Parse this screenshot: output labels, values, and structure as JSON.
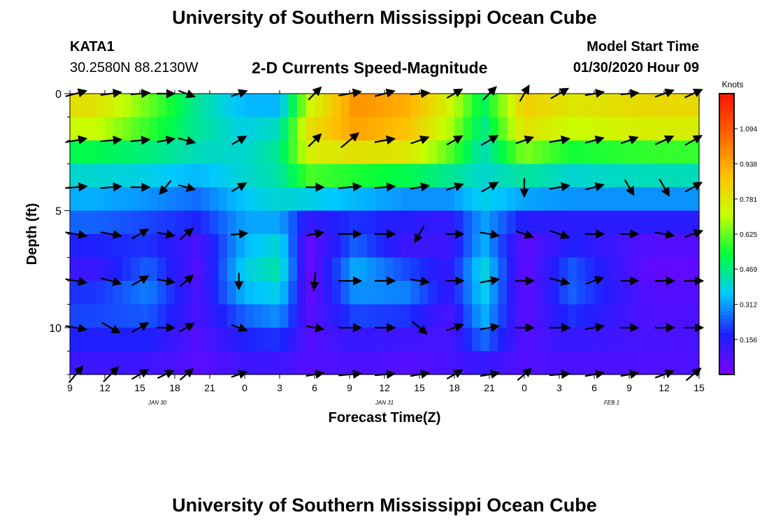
{
  "header": {
    "top_title": "University of Southern Mississippi Ocean Cube",
    "bottom_title": "University of Southern Mississippi Ocean Cube",
    "station_id": "KATA1",
    "station_coords": "30.2580N 88.2130W",
    "model_start_label": "Model Start Time",
    "model_start_value": "01/30/2020 Hour 09"
  },
  "colors": {
    "scale": [
      "#7f00ff",
      "#1f1fff",
      "#00c8ff",
      "#00ff3c",
      "#c8ff00",
      "#ffbe00",
      "#ff6400",
      "#ff1400"
    ]
  },
  "chart_data": {
    "type": "heatmap",
    "title": "2-D Currents Speed-Magnitude",
    "xlabel": "Forecast Time(Z)",
    "ylabel": "Depth (ft)",
    "x_ticks": [
      "9",
      "12",
      "15",
      "18",
      "21",
      "0",
      "3",
      "6",
      "9",
      "12",
      "15",
      "18",
      "21",
      "0",
      "3",
      "6",
      "9",
      "12",
      "15"
    ],
    "date_labels": [
      {
        "label": "JAN  30",
        "hour": 7.5
      },
      {
        "label": "JAN  31",
        "hour": 27
      },
      {
        "label": "FEB  1",
        "hour": 46.5
      }
    ],
    "x_range_hours": [
      0,
      54
    ],
    "y_range": [
      0,
      12
    ],
    "y_ticks": [
      0,
      5,
      10
    ],
    "colorbar": {
      "unit": "Knots",
      "ticks": [
        "1.094",
        "0.938",
        "0.781",
        "0.625",
        "0.469",
        "0.312",
        "0.156"
      ],
      "tick_values": [
        1.094,
        0.938,
        0.781,
        0.625,
        0.469,
        0.312,
        0.156
      ],
      "range": [
        0,
        1.25
      ]
    },
    "depths": [
      0.5,
      1.5,
      2.5,
      3.5,
      4.5,
      5.5,
      6.5,
      7.5,
      8.5,
      9.5,
      10.5,
      11.5
    ],
    "time_columns": [
      {
        "h0": 0,
        "h1": 4.5,
        "speeds": [
          0.8,
          0.72,
          0.52,
          0.4,
          0.33,
          0.25,
          0.18,
          0.13,
          0.2,
          0.22,
          0.18,
          0.12
        ]
      },
      {
        "h0": 4.5,
        "h1": 9,
        "speeds": [
          0.63,
          0.58,
          0.48,
          0.38,
          0.3,
          0.22,
          0.2,
          0.25,
          0.28,
          0.24,
          0.18,
          0.12
        ]
      },
      {
        "h0": 9,
        "h1": 13,
        "speeds": [
          0.45,
          0.45,
          0.42,
          0.34,
          0.26,
          0.18,
          0.1,
          0.08,
          0.1,
          0.1,
          0.08,
          0.07
        ]
      },
      {
        "h0": 13,
        "h1": 17,
        "speeds": [
          0.34,
          0.38,
          0.4,
          0.4,
          0.36,
          0.32,
          0.34,
          0.38,
          0.34,
          0.25,
          0.18,
          0.12
        ]
      },
      {
        "h0": 17,
        "h1": 19,
        "speeds": [
          0.34,
          0.42,
          0.46,
          0.44,
          0.4,
          0.32,
          0.4,
          0.44,
          0.38,
          0.3,
          0.2,
          0.12
        ]
      },
      {
        "h0": 19,
        "h1": 22,
        "speeds": [
          0.72,
          0.8,
          0.76,
          0.6,
          0.38,
          0.14,
          0.05,
          0.04,
          0.05,
          0.07,
          0.08,
          0.08
        ]
      },
      {
        "h0": 22,
        "h1": 27,
        "speeds": [
          0.98,
          0.95,
          0.8,
          0.56,
          0.34,
          0.2,
          0.25,
          0.33,
          0.3,
          0.22,
          0.14,
          0.1
        ]
      },
      {
        "h0": 27,
        "h1": 31,
        "speeds": [
          0.92,
          0.88,
          0.78,
          0.52,
          0.3,
          0.16,
          0.12,
          0.22,
          0.28,
          0.2,
          0.12,
          0.08
        ]
      },
      {
        "h0": 31,
        "h1": 34,
        "speeds": [
          0.75,
          0.7,
          0.62,
          0.46,
          0.3,
          0.14,
          0.12,
          0.14,
          0.14,
          0.1,
          0.1,
          0.1
        ]
      },
      {
        "h0": 34,
        "h1": 37,
        "speeds": [
          0.5,
          0.46,
          0.42,
          0.4,
          0.38,
          0.32,
          0.34,
          0.4,
          0.38,
          0.34,
          0.26,
          0.14
        ]
      },
      {
        "h0": 37,
        "h1": 41,
        "speeds": [
          0.85,
          0.8,
          0.65,
          0.45,
          0.32,
          0.16,
          0.06,
          0.05,
          0.05,
          0.06,
          0.08,
          0.08
        ]
      },
      {
        "h0": 41,
        "h1": 45,
        "speeds": [
          0.78,
          0.72,
          0.55,
          0.4,
          0.3,
          0.16,
          0.18,
          0.24,
          0.25,
          0.2,
          0.14,
          0.1
        ]
      },
      {
        "h0": 45,
        "h1": 54,
        "speeds": [
          0.82,
          0.76,
          0.58,
          0.42,
          0.3,
          0.16,
          0.08,
          0.06,
          0.08,
          0.09,
          0.1,
          0.09
        ]
      }
    ],
    "vector_times": [
      0.5,
      3.5,
      6.0,
      8.2,
      10.0,
      14.5,
      21.0,
      24.0,
      27.0,
      30.0,
      33.0,
      36.0,
      39.0,
      42.0,
      45.0,
      48.0,
      51.0,
      53.5
    ],
    "vector_depths": [
      0,
      2,
      4,
      6,
      8,
      10,
      12
    ],
    "vector_directions_deg": [
      [
        15,
        8,
        5,
        0,
        -20,
        20,
        45,
        10,
        15,
        5,
        30,
        45,
        60,
        30,
        10,
        5,
        20,
        25
      ],
      [
        10,
        5,
        5,
        10,
        -15,
        30,
        45,
        40,
        10,
        20,
        30,
        30,
        20,
        10,
        15,
        20,
        25,
        30
      ],
      [
        5,
        5,
        0,
        -130,
        -15,
        30,
        0,
        5,
        5,
        10,
        20,
        30,
        -90,
        10,
        15,
        -60,
        -60,
        30
      ],
      [
        -10,
        -10,
        30,
        -10,
        40,
        5,
        10,
        0,
        0,
        -120,
        0,
        -10,
        -20,
        -20,
        0,
        0,
        -10,
        20
      ],
      [
        -10,
        -15,
        30,
        -10,
        40,
        -90,
        -95,
        0,
        0,
        -10,
        0,
        10,
        0,
        -15,
        20,
        0,
        0,
        0
      ],
      [
        -10,
        -30,
        30,
        0,
        30,
        -20,
        -10,
        0,
        0,
        -40,
        20,
        10,
        0,
        0,
        10,
        0,
        0,
        0
      ],
      [
        50,
        45,
        30,
        25,
        40,
        20,
        10,
        5,
        5,
        10,
        30,
        10,
        40,
        5,
        10,
        10,
        20,
        40
      ]
    ],
    "vector_strengths": [
      0.9,
      0.85,
      0.7,
      0.6,
      0.55,
      0.5,
      0.6,
      1.0,
      0.8,
      0.7,
      0.6,
      0.7,
      0.65,
      0.8,
      0.7,
      0.6,
      0.75,
      0.7
    ]
  }
}
